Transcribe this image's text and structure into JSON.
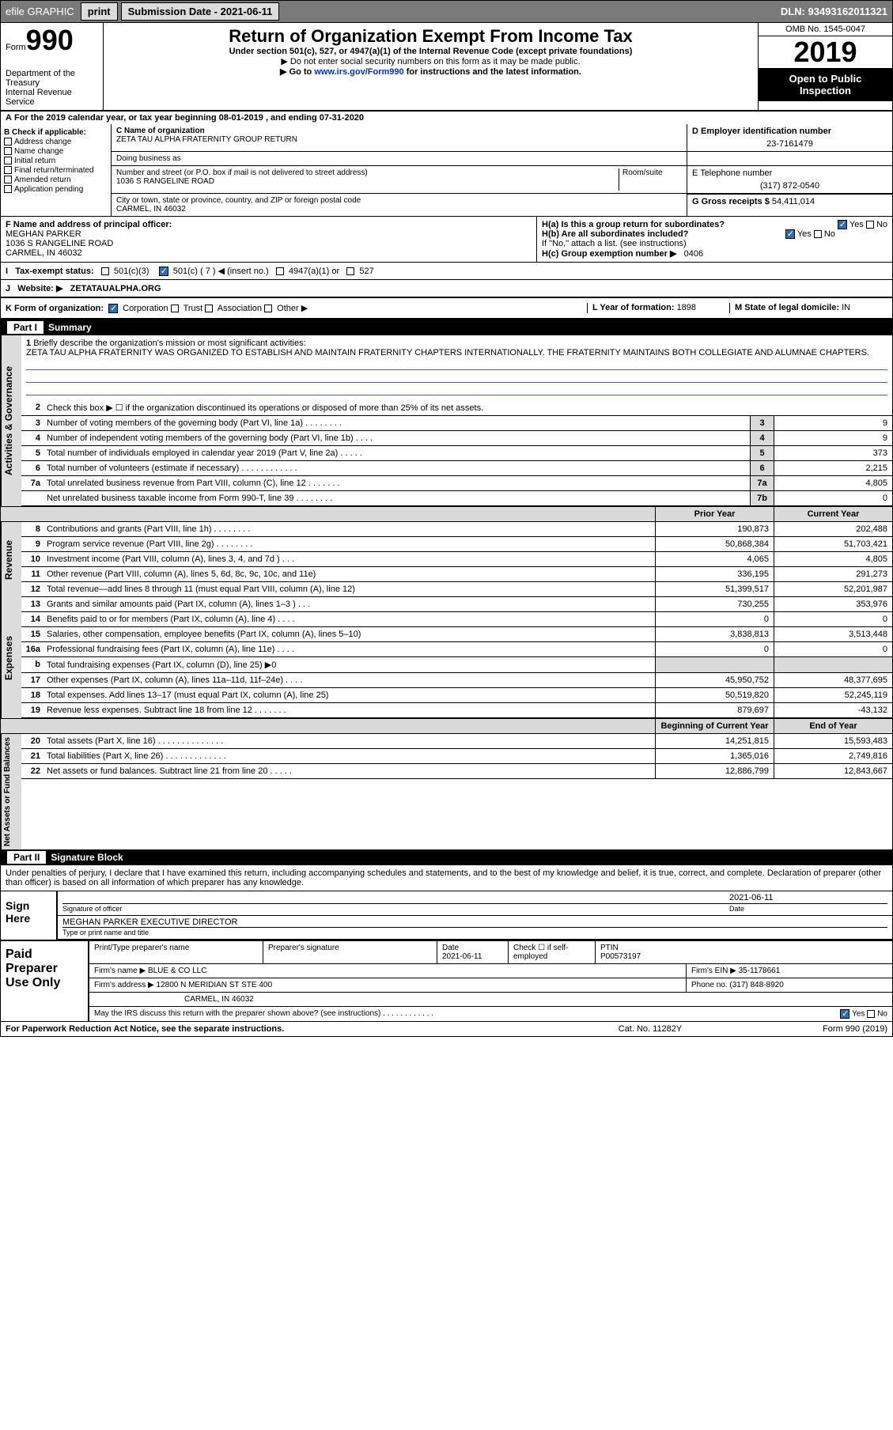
{
  "topbar": {
    "efile": "efile GRAPHIC",
    "print": "print",
    "subdate_lbl": "Submission Date - ",
    "subdate": "2021-06-11",
    "dln_lbl": "DLN: ",
    "dln": "93493162011321"
  },
  "header": {
    "form": "Form",
    "num": "990",
    "dept": "Department of the Treasury",
    "irs": "Internal Revenue Service",
    "title": "Return of Organization Exempt From Income Tax",
    "sub": "Under section 501(c), 527, or 4947(a)(1) of the Internal Revenue Code (except private foundations)",
    "note1": "▶ Do not enter social security numbers on this form as it may be made public.",
    "note2": "▶ Go to ",
    "link": "www.irs.gov/Form990",
    "note3": " for instructions and the latest information.",
    "omb": "OMB No. 1545-0047",
    "year": "2019",
    "open": "Open to Public Inspection"
  },
  "period": "For the 2019 calendar year, or tax year beginning 08-01-2019   , and ending 07-31-2020",
  "B": {
    "title": "B Check if applicable:",
    "items": [
      "Address change",
      "Name change",
      "Initial return",
      "Final return/terminated",
      "Amended return",
      "Application pending"
    ]
  },
  "C": {
    "name_lbl": "C Name of organization",
    "name": "ZETA TAU ALPHA FRATERNITY GROUP RETURN",
    "dba_lbl": "Doing business as",
    "dba": "",
    "addr_lbl": "Number and street (or P.O. box if mail is not delivered to street address)",
    "room_lbl": "Room/suite",
    "addr": "1036 S RANGELINE ROAD",
    "city_lbl": "City or town, state or province, country, and ZIP or foreign postal code",
    "city": "CARMEL, IN  46032"
  },
  "D": {
    "lbl": "D Employer identification number",
    "val": "23-7161479"
  },
  "E": {
    "lbl": "E Telephone number",
    "val": "(317) 872-0540"
  },
  "G": {
    "lbl": "G Gross receipts $ ",
    "val": "54,411,014"
  },
  "F": {
    "lbl": "F  Name and address of principal officer:",
    "name": "MEGHAN PARKER",
    "addr1": "1036 S RANGELINE ROAD",
    "addr2": "CARMEL, IN  46032"
  },
  "H": {
    "a": "H(a)  Is this a group return for subordinates?",
    "b": "H(b)  Are all subordinates included?",
    "bnote": "If \"No,\" attach a list. (see instructions)",
    "c": "H(c)  Group exemption number ▶",
    "cval": "0406",
    "yes": "Yes",
    "no": "No"
  },
  "I": {
    "lbl": "Tax-exempt status:",
    "o1": "501(c)(3)",
    "o2": "501(c) ( 7 ) ◀ (insert no.)",
    "o3": "4947(a)(1) or",
    "o4": "527"
  },
  "J": {
    "lbl": "Website: ▶",
    "val": "ZETATAUALPHA.ORG"
  },
  "K": {
    "lbl": "K Form of organization:",
    "o1": "Corporation",
    "o2": "Trust",
    "o3": "Association",
    "o4": "Other ▶"
  },
  "L": {
    "lbl": "L Year of formation: ",
    "val": "1898"
  },
  "M": {
    "lbl": "M State of legal domicile: ",
    "val": "IN"
  },
  "part1": {
    "pn": "Part I",
    "t": "Summary"
  },
  "mission": {
    "num": "1",
    "lbl": "Briefly describe the organization's mission or most significant activities:",
    "txt": "ZETA TAU ALPHA FRATERNITY WAS ORGANIZED TO ESTABLISH AND MAINTAIN FRATERNITY CHAPTERS INTERNATIONALLY. THE FRATERNITY MAINTAINS BOTH COLLEGIATE AND ALUMNAE CHAPTERS."
  },
  "gov": {
    "label": "Activities & Governance",
    "l2": "Check this box ▶ ☐  if the organization discontinued its operations or disposed of more than 25% of its net assets.",
    "rows": [
      {
        "n": "3",
        "t": "Number of voting members of the governing body (Part VI, line 1a)  .    .    .    .    .    .    .    .",
        "b": "3",
        "v": "9"
      },
      {
        "n": "4",
        "t": "Number of independent voting members of the governing body (Part VI, line 1b)  .    .    .    .",
        "b": "4",
        "v": "9"
      },
      {
        "n": "5",
        "t": "Total number of individuals employed in calendar year 2019 (Part V, line 2a)  .    .    .    .    .",
        "b": "5",
        "v": "373"
      },
      {
        "n": "6",
        "t": "Total number of volunteers (estimate if necessary)    .    .    .    .    .    .    .    .    .    .    .    .",
        "b": "6",
        "v": "2,215"
      },
      {
        "n": "7a",
        "t": "Total unrelated business revenue from Part VIII, column (C), line 12  .    .    .    .    .    .    .",
        "b": "7a",
        "v": "4,805"
      },
      {
        "n": "",
        "t": "Net unrelated business taxable income from Form 990-T, line 39   .    .    .    .    .    .    .    .",
        "b": "7b",
        "v": "0"
      }
    ]
  },
  "hd_py": "Prior Year",
  "hd_cy": "Current Year",
  "rev": {
    "label": "Revenue",
    "rows": [
      {
        "n": "8",
        "t": "Contributions and grants (Part VIII, line 1h)   .    .    .    .    .    .    .    .",
        "py": "190,873",
        "cy": "202,488"
      },
      {
        "n": "9",
        "t": "Program service revenue (Part VIII, line 2g)    .    .    .    .    .    .    .    .",
        "py": "50,868,384",
        "cy": "51,703,421"
      },
      {
        "n": "10",
        "t": "Investment income (Part VIII, column (A), lines 3, 4, and 7d )   .    .    .",
        "py": "4,065",
        "cy": "4,805"
      },
      {
        "n": "11",
        "t": "Other revenue (Part VIII, column (A), lines 5, 6d, 8c, 9c, 10c, and 11e)",
        "py": "336,195",
        "cy": "291,273"
      },
      {
        "n": "12",
        "t": "Total revenue—add lines 8 through 11 (must equal Part VIII, column (A), line 12)",
        "py": "51,399,517",
        "cy": "52,201,987"
      }
    ]
  },
  "exp": {
    "label": "Expenses",
    "rows": [
      {
        "n": "13",
        "t": "Grants and similar amounts paid (Part IX, column (A), lines 1–3 )  .    .    .",
        "py": "730,255",
        "cy": "353,976"
      },
      {
        "n": "14",
        "t": "Benefits paid to or for members (Part IX, column (A), line 4)  .    .    .    .",
        "py": "0",
        "cy": "0"
      },
      {
        "n": "15",
        "t": "Salaries, other compensation, employee benefits (Part IX, column (A), lines 5–10)",
        "py": "3,838,813",
        "cy": "3,513,448"
      },
      {
        "n": "16a",
        "t": "Professional fundraising fees (Part IX, column (A), line 11e)  .    .    .    .",
        "py": "0",
        "cy": "0"
      },
      {
        "n": "b",
        "t": "Total fundraising expenses (Part IX, column (D), line 25) ▶0",
        "py": "",
        "cy": "",
        "gray": true
      },
      {
        "n": "17",
        "t": "Other expenses (Part IX, column (A), lines 11a–11d, 11f–24e)  .    .    .    .",
        "py": "45,950,752",
        "cy": "48,377,695"
      },
      {
        "n": "18",
        "t": "Total expenses. Add lines 13–17 (must equal Part IX, column (A), line 25)",
        "py": "50,519,820",
        "cy": "52,245,119"
      },
      {
        "n": "19",
        "t": "Revenue less expenses. Subtract line 18 from line 12  .    .    .    .    .    .    .",
        "py": "879,697",
        "cy": "-43,132"
      }
    ]
  },
  "hd_boy": "Beginning of Current Year",
  "hd_eoy": "End of Year",
  "net": {
    "label": "Net Assets or Fund Balances",
    "rows": [
      {
        "n": "20",
        "t": "Total assets (Part X, line 16)  .    .    .    .    .    .    .    .    .    .    .    .    .    .",
        "py": "14,251,815",
        "cy": "15,593,483"
      },
      {
        "n": "21",
        "t": "Total liabilities (Part X, line 26)  .    .    .    .    .    .    .    .    .    .    .    .    .",
        "py": "1,365,016",
        "cy": "2,749,816"
      },
      {
        "n": "22",
        "t": "Net assets or fund balances. Subtract line 21 from line 20  .    .    .    .    .",
        "py": "12,886,799",
        "cy": "12,843,667"
      }
    ]
  },
  "part2": {
    "pn": "Part II",
    "t": "Signature Block"
  },
  "decl": "Under penalties of perjury, I declare that I have examined this return, including accompanying schedules and statements, and to the best of my knowledge and belief, it is true, correct, and complete. Declaration of preparer (other than officer) is based on all information of which preparer has any knowledge.",
  "sign": {
    "here": "Sign Here",
    "sig_lbl": "Signature of officer",
    "date": "2021-06-11",
    "date_lbl": "Date",
    "name": "MEGHAN PARKER  EXECUTIVE DIRECTOR",
    "name_lbl": "Type or print name and title"
  },
  "prep": {
    "t": "Paid Preparer Use Only",
    "r1": {
      "a": "Print/Type preparer's name",
      "b": "Preparer's signature",
      "c": "Date",
      "cv": "2021-06-11",
      "d": "Check ☐ if self-employed",
      "e": "PTIN",
      "ev": "P00573197"
    },
    "r2": {
      "a": "Firm's name    ▶",
      "av": "BLUE & CO LLC",
      "b": "Firm's EIN ▶",
      "bv": "35-1178661"
    },
    "r3": {
      "a": "Firm's address ▶",
      "av": "12800 N MERIDIAN ST STE 400",
      "b": "Phone no. ",
      "bv": "(317) 848-8920"
    },
    "r3b": "CARMEL, IN  46032",
    "r4": "May the IRS discuss this return with the preparer shown above? (see instructions)   .    .    .    .    .    .    .    .    .    .    .    ."
  },
  "foot": {
    "a": "For Paperwork Reduction Act Notice, see the separate instructions.",
    "b": "Cat. No. 11282Y",
    "c": "Form 990 (2019)"
  }
}
